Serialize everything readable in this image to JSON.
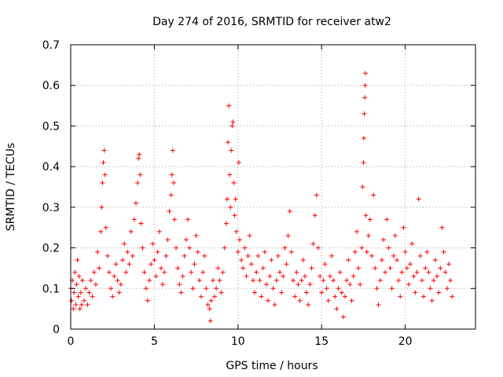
{
  "chart_data": {
    "type": "scatter",
    "title": "Day 274 of 2016, SRMTID for receiver atw2",
    "xlabel": "GPS time / hours",
    "ylabel": "SRMTID / TECUs",
    "xlim": [
      0,
      24.2
    ],
    "ylim": [
      0,
      0.7
    ],
    "xticks": [
      0,
      5,
      10,
      15,
      20
    ],
    "xtick_labels": [
      "0",
      "5",
      "10",
      "15",
      "20"
    ],
    "yticks": [
      0,
      0.1,
      0.2,
      0.3,
      0.4,
      0.5,
      0.6,
      0.7
    ],
    "ytick_labels": [
      "0",
      "0.1",
      "0.2",
      "0.3",
      "0.4",
      "0.5",
      "0.6",
      "0.7"
    ],
    "grid": true,
    "marker": "plus",
    "series_color": "#ff0000",
    "series": [
      {
        "name": "SRMTID",
        "points": [
          [
            0.0,
            0.1
          ],
          [
            0.05,
            0.07
          ],
          [
            0.1,
            0.12
          ],
          [
            0.15,
            0.05
          ],
          [
            0.2,
            0.09
          ],
          [
            0.25,
            0.14
          ],
          [
            0.3,
            0.06
          ],
          [
            0.35,
            0.11
          ],
          [
            0.4,
            0.17
          ],
          [
            0.45,
            0.08
          ],
          [
            0.5,
            0.13
          ],
          [
            0.55,
            0.05
          ],
          [
            0.6,
            0.09
          ],
          [
            0.65,
            0.06
          ],
          [
            0.7,
            0.12
          ],
          [
            0.8,
            0.07
          ],
          [
            0.9,
            0.1
          ],
          [
            1.0,
            0.06
          ],
          [
            1.1,
            0.09
          ],
          [
            1.2,
            0.12
          ],
          [
            1.3,
            0.08
          ],
          [
            1.4,
            0.14
          ],
          [
            1.5,
            0.11
          ],
          [
            1.6,
            0.19
          ],
          [
            1.7,
            0.15
          ],
          [
            1.8,
            0.24
          ],
          [
            1.85,
            0.3
          ],
          [
            1.9,
            0.36
          ],
          [
            1.95,
            0.41
          ],
          [
            2.0,
            0.44
          ],
          [
            2.05,
            0.38
          ],
          [
            2.1,
            0.25
          ],
          [
            2.2,
            0.18
          ],
          [
            2.3,
            0.14
          ],
          [
            2.4,
            0.1
          ],
          [
            2.5,
            0.08
          ],
          [
            2.6,
            0.13
          ],
          [
            2.7,
            0.16
          ],
          [
            2.8,
            0.12
          ],
          [
            2.9,
            0.09
          ],
          [
            3.0,
            0.11
          ],
          [
            3.1,
            0.17
          ],
          [
            3.2,
            0.21
          ],
          [
            3.3,
            0.14
          ],
          [
            3.4,
            0.19
          ],
          [
            3.5,
            0.16
          ],
          [
            3.6,
            0.24
          ],
          [
            3.7,
            0.18
          ],
          [
            3.8,
            0.27
          ],
          [
            3.9,
            0.31
          ],
          [
            4.0,
            0.36
          ],
          [
            4.05,
            0.42
          ],
          [
            4.1,
            0.43
          ],
          [
            4.15,
            0.38
          ],
          [
            4.2,
            0.26
          ],
          [
            4.3,
            0.2
          ],
          [
            4.4,
            0.14
          ],
          [
            4.5,
            0.1
          ],
          [
            4.6,
            0.07
          ],
          [
            4.7,
            0.12
          ],
          [
            4.8,
            0.16
          ],
          [
            4.9,
            0.21
          ],
          [
            5.0,
            0.17
          ],
          [
            5.1,
            0.13
          ],
          [
            5.2,
            0.19
          ],
          [
            5.3,
            0.24
          ],
          [
            5.4,
            0.15
          ],
          [
            5.5,
            0.11
          ],
          [
            5.6,
            0.14
          ],
          [
            5.7,
            0.18
          ],
          [
            5.8,
            0.22
          ],
          [
            5.9,
            0.29
          ],
          [
            6.0,
            0.33
          ],
          [
            6.05,
            0.38
          ],
          [
            6.1,
            0.44
          ],
          [
            6.15,
            0.36
          ],
          [
            6.2,
            0.27
          ],
          [
            6.3,
            0.2
          ],
          [
            6.4,
            0.15
          ],
          [
            6.5,
            0.11
          ],
          [
            6.6,
            0.09
          ],
          [
            6.7,
            0.13
          ],
          [
            6.8,
            0.18
          ],
          [
            6.9,
            0.22
          ],
          [
            7.0,
            0.27
          ],
          [
            7.1,
            0.2
          ],
          [
            7.2,
            0.14
          ],
          [
            7.3,
            0.1
          ],
          [
            7.4,
            0.16
          ],
          [
            7.5,
            0.23
          ],
          [
            7.6,
            0.19
          ],
          [
            7.7,
            0.12
          ],
          [
            7.8,
            0.08
          ],
          [
            7.9,
            0.14
          ],
          [
            8.0,
            0.18
          ],
          [
            8.1,
            0.1
          ],
          [
            8.2,
            0.06
          ],
          [
            8.3,
            0.05
          ],
          [
            8.35,
            0.02
          ],
          [
            8.4,
            0.07
          ],
          [
            8.5,
            0.12
          ],
          [
            8.6,
            0.08
          ],
          [
            8.7,
            0.1
          ],
          [
            8.8,
            0.15
          ],
          [
            8.9,
            0.12
          ],
          [
            9.0,
            0.09
          ],
          [
            9.1,
            0.14
          ],
          [
            9.2,
            0.2
          ],
          [
            9.3,
            0.26
          ],
          [
            9.35,
            0.32
          ],
          [
            9.4,
            0.46
          ],
          [
            9.45,
            0.55
          ],
          [
            9.5,
            0.38
          ],
          [
            9.55,
            0.3
          ],
          [
            9.6,
            0.44
          ],
          [
            9.65,
            0.5
          ],
          [
            9.7,
            0.51
          ],
          [
            9.75,
            0.36
          ],
          [
            9.8,
            0.28
          ],
          [
            9.85,
            0.32
          ],
          [
            9.9,
            0.24
          ],
          [
            10.0,
            0.19
          ],
          [
            10.05,
            0.41
          ],
          [
            10.1,
            0.22
          ],
          [
            10.2,
            0.17
          ],
          [
            10.3,
            0.15
          ],
          [
            10.4,
            0.2
          ],
          [
            10.5,
            0.13
          ],
          [
            10.6,
            0.18
          ],
          [
            10.7,
            0.23
          ],
          [
            10.8,
            0.16
          ],
          [
            10.9,
            0.12
          ],
          [
            11.0,
            0.09
          ],
          [
            11.1,
            0.14
          ],
          [
            11.2,
            0.18
          ],
          [
            11.3,
            0.12
          ],
          [
            11.4,
            0.08
          ],
          [
            11.5,
            0.15
          ],
          [
            11.6,
            0.19
          ],
          [
            11.7,
            0.11
          ],
          [
            11.8,
            0.07
          ],
          [
            11.9,
            0.13
          ],
          [
            12.0,
            0.17
          ],
          [
            12.1,
            0.1
          ],
          [
            12.2,
            0.06
          ],
          [
            12.3,
            0.12
          ],
          [
            12.4,
            0.18
          ],
          [
            12.5,
            0.14
          ],
          [
            12.6,
            0.09
          ],
          [
            12.7,
            0.13
          ],
          [
            12.8,
            0.2
          ],
          [
            12.9,
            0.16
          ],
          [
            13.0,
            0.23
          ],
          [
            13.1,
            0.29
          ],
          [
            13.2,
            0.19
          ],
          [
            13.3,
            0.12
          ],
          [
            13.4,
            0.08
          ],
          [
            13.5,
            0.14
          ],
          [
            13.6,
            0.11
          ],
          [
            13.7,
            0.07
          ],
          [
            13.8,
            0.12
          ],
          [
            13.9,
            0.17
          ],
          [
            14.0,
            0.13
          ],
          [
            14.1,
            0.09
          ],
          [
            14.2,
            0.06
          ],
          [
            14.3,
            0.11
          ],
          [
            14.4,
            0.15
          ],
          [
            14.5,
            0.21
          ],
          [
            14.6,
            0.28
          ],
          [
            14.7,
            0.33
          ],
          [
            14.8,
            0.2
          ],
          [
            14.9,
            0.13
          ],
          [
            15.0,
            0.09
          ],
          [
            15.1,
            0.12
          ],
          [
            15.2,
            0.16
          ],
          [
            15.3,
            0.1
          ],
          [
            15.4,
            0.07
          ],
          [
            15.5,
            0.13
          ],
          [
            15.6,
            0.18
          ],
          [
            15.7,
            0.12
          ],
          [
            15.8,
            0.08
          ],
          [
            15.9,
            0.05
          ],
          [
            16.0,
            0.1
          ],
          [
            16.1,
            0.14
          ],
          [
            16.2,
            0.09
          ],
          [
            16.3,
            0.03
          ],
          [
            16.4,
            0.08
          ],
          [
            16.5,
            0.12
          ],
          [
            16.6,
            0.17
          ],
          [
            16.7,
            0.11
          ],
          [
            16.8,
            0.07
          ],
          [
            16.9,
            0.13
          ],
          [
            17.0,
            0.19
          ],
          [
            17.1,
            0.24
          ],
          [
            17.2,
            0.15
          ],
          [
            17.3,
            0.11
          ],
          [
            17.4,
            0.2
          ],
          [
            17.45,
            0.35
          ],
          [
            17.5,
            0.41
          ],
          [
            17.52,
            0.47
          ],
          [
            17.55,
            0.53
          ],
          [
            17.58,
            0.57
          ],
          [
            17.6,
            0.6
          ],
          [
            17.62,
            0.63
          ],
          [
            17.65,
            0.28
          ],
          [
            17.7,
            0.19
          ],
          [
            17.8,
            0.23
          ],
          [
            17.9,
            0.27
          ],
          [
            18.0,
            0.18
          ],
          [
            18.1,
            0.33
          ],
          [
            18.2,
            0.15
          ],
          [
            18.3,
            0.1
          ],
          [
            18.4,
            0.06
          ],
          [
            18.5,
            0.12
          ],
          [
            18.6,
            0.17
          ],
          [
            18.7,
            0.22
          ],
          [
            18.8,
            0.14
          ],
          [
            18.9,
            0.27
          ],
          [
            19.0,
            0.2
          ],
          [
            19.1,
            0.15
          ],
          [
            19.2,
            0.1
          ],
          [
            19.3,
            0.18
          ],
          [
            19.4,
            0.23
          ],
          [
            19.5,
            0.17
          ],
          [
            19.6,
            0.12
          ],
          [
            19.7,
            0.08
          ],
          [
            19.8,
            0.14
          ],
          [
            19.9,
            0.25
          ],
          [
            20.0,
            0.19
          ],
          [
            20.1,
            0.15
          ],
          [
            20.2,
            0.11
          ],
          [
            20.3,
            0.16
          ],
          [
            20.4,
            0.21
          ],
          [
            20.5,
            0.13
          ],
          [
            20.6,
            0.09
          ],
          [
            20.7,
            0.14
          ],
          [
            20.8,
            0.32
          ],
          [
            20.9,
            0.18
          ],
          [
            21.0,
            0.12
          ],
          [
            21.1,
            0.08
          ],
          [
            21.2,
            0.15
          ],
          [
            21.3,
            0.19
          ],
          [
            21.4,
            0.14
          ],
          [
            21.5,
            0.1
          ],
          [
            21.6,
            0.07
          ],
          [
            21.7,
            0.12
          ],
          [
            21.8,
            0.17
          ],
          [
            21.9,
            0.13
          ],
          [
            22.0,
            0.09
          ],
          [
            22.1,
            0.15
          ],
          [
            22.2,
            0.25
          ],
          [
            22.3,
            0.19
          ],
          [
            22.4,
            0.14
          ],
          [
            22.5,
            0.1
          ],
          [
            22.6,
            0.16
          ],
          [
            22.7,
            0.12
          ],
          [
            22.8,
            0.08
          ]
        ]
      }
    ]
  }
}
